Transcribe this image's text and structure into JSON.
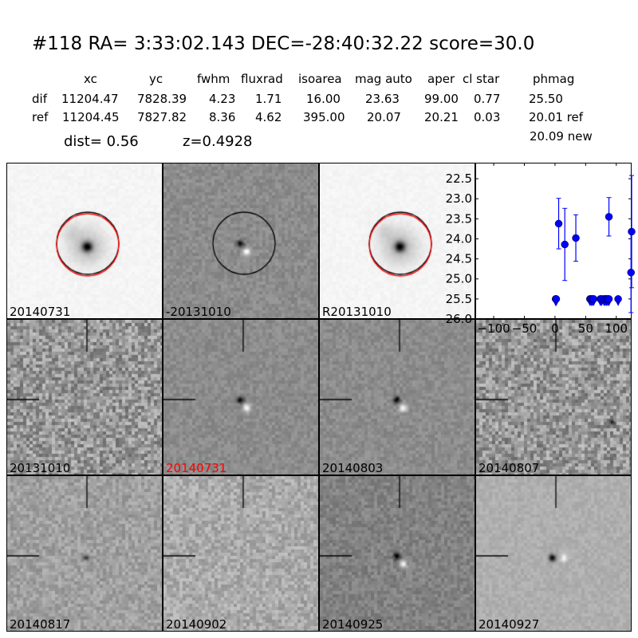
{
  "header": {
    "title": "#118   RA= 3:33:02.143 DEC=-28:40:32.22      score=30.0",
    "columns": [
      "xc",
      "yc",
      "fwhm",
      "fluxrad",
      "isoarea",
      "mag auto",
      "aper",
      "cl star",
      "phmag"
    ],
    "dif": {
      "label": "dif",
      "values": [
        "11204.47",
        "7828.39",
        "4.23",
        "1.71",
        "16.00",
        "23.63",
        "99.00",
        "0.77",
        "25.50"
      ]
    },
    "ref": {
      "label": "ref",
      "values": [
        "11204.45",
        "7827.82",
        "8.36",
        "4.62",
        "395.00",
        "20.07",
        "20.21",
        "0.03",
        "20.01 ref"
      ]
    },
    "dist": "dist=  0.56",
    "z": "z=0.4928",
    "new_mag": "20.09 new"
  },
  "stamps": [
    {
      "label": "20140731",
      "color": "#000000"
    },
    {
      "label": "-20131010",
      "color": "#000000"
    },
    {
      "label": "R20131010",
      "color": "#000000"
    },
    {
      "label": "20131010",
      "color": "#000000"
    },
    {
      "label": "20140731",
      "color": "#ff0000"
    },
    {
      "label": "20140803",
      "color": "#000000"
    },
    {
      "label": "20140807",
      "color": "#000000"
    },
    {
      "label": "20140817",
      "color": "#000000"
    },
    {
      "label": "20140902",
      "color": "#000000"
    },
    {
      "label": "20140925",
      "color": "#000000"
    },
    {
      "label": "20140927",
      "color": "#000000"
    }
  ],
  "chart_data": {
    "type": "scatter",
    "xlim": [
      -130,
      125
    ],
    "ylim": [
      26.0,
      22.1
    ],
    "y_inverted": true,
    "xticks": [
      "−100",
      "−50",
      "0",
      "50",
      "100"
    ],
    "yticks": [
      "22.5",
      "23.0",
      "23.5",
      "24.0",
      "24.5",
      "25.0",
      "25.5",
      "26.0"
    ],
    "color": "#0000ff",
    "detections": [
      {
        "x": 6,
        "y": 23.62,
        "err": 0.63
      },
      {
        "x": 16,
        "y": 24.14,
        "err": 0.9
      },
      {
        "x": 34,
        "y": 23.98,
        "err": 0.58
      },
      {
        "x": 88,
        "y": 23.45,
        "err": 0.48
      },
      {
        "x": 124,
        "y": 24.84,
        "err": 1.0
      },
      {
        "x": 125,
        "y": 23.82,
        "err": 1.4
      }
    ],
    "upper_limits": {
      "y": 25.5,
      "x": [
        1,
        2,
        57,
        59,
        61,
        63,
        74,
        76,
        80,
        82,
        84,
        86,
        88,
        103
      ]
    }
  }
}
